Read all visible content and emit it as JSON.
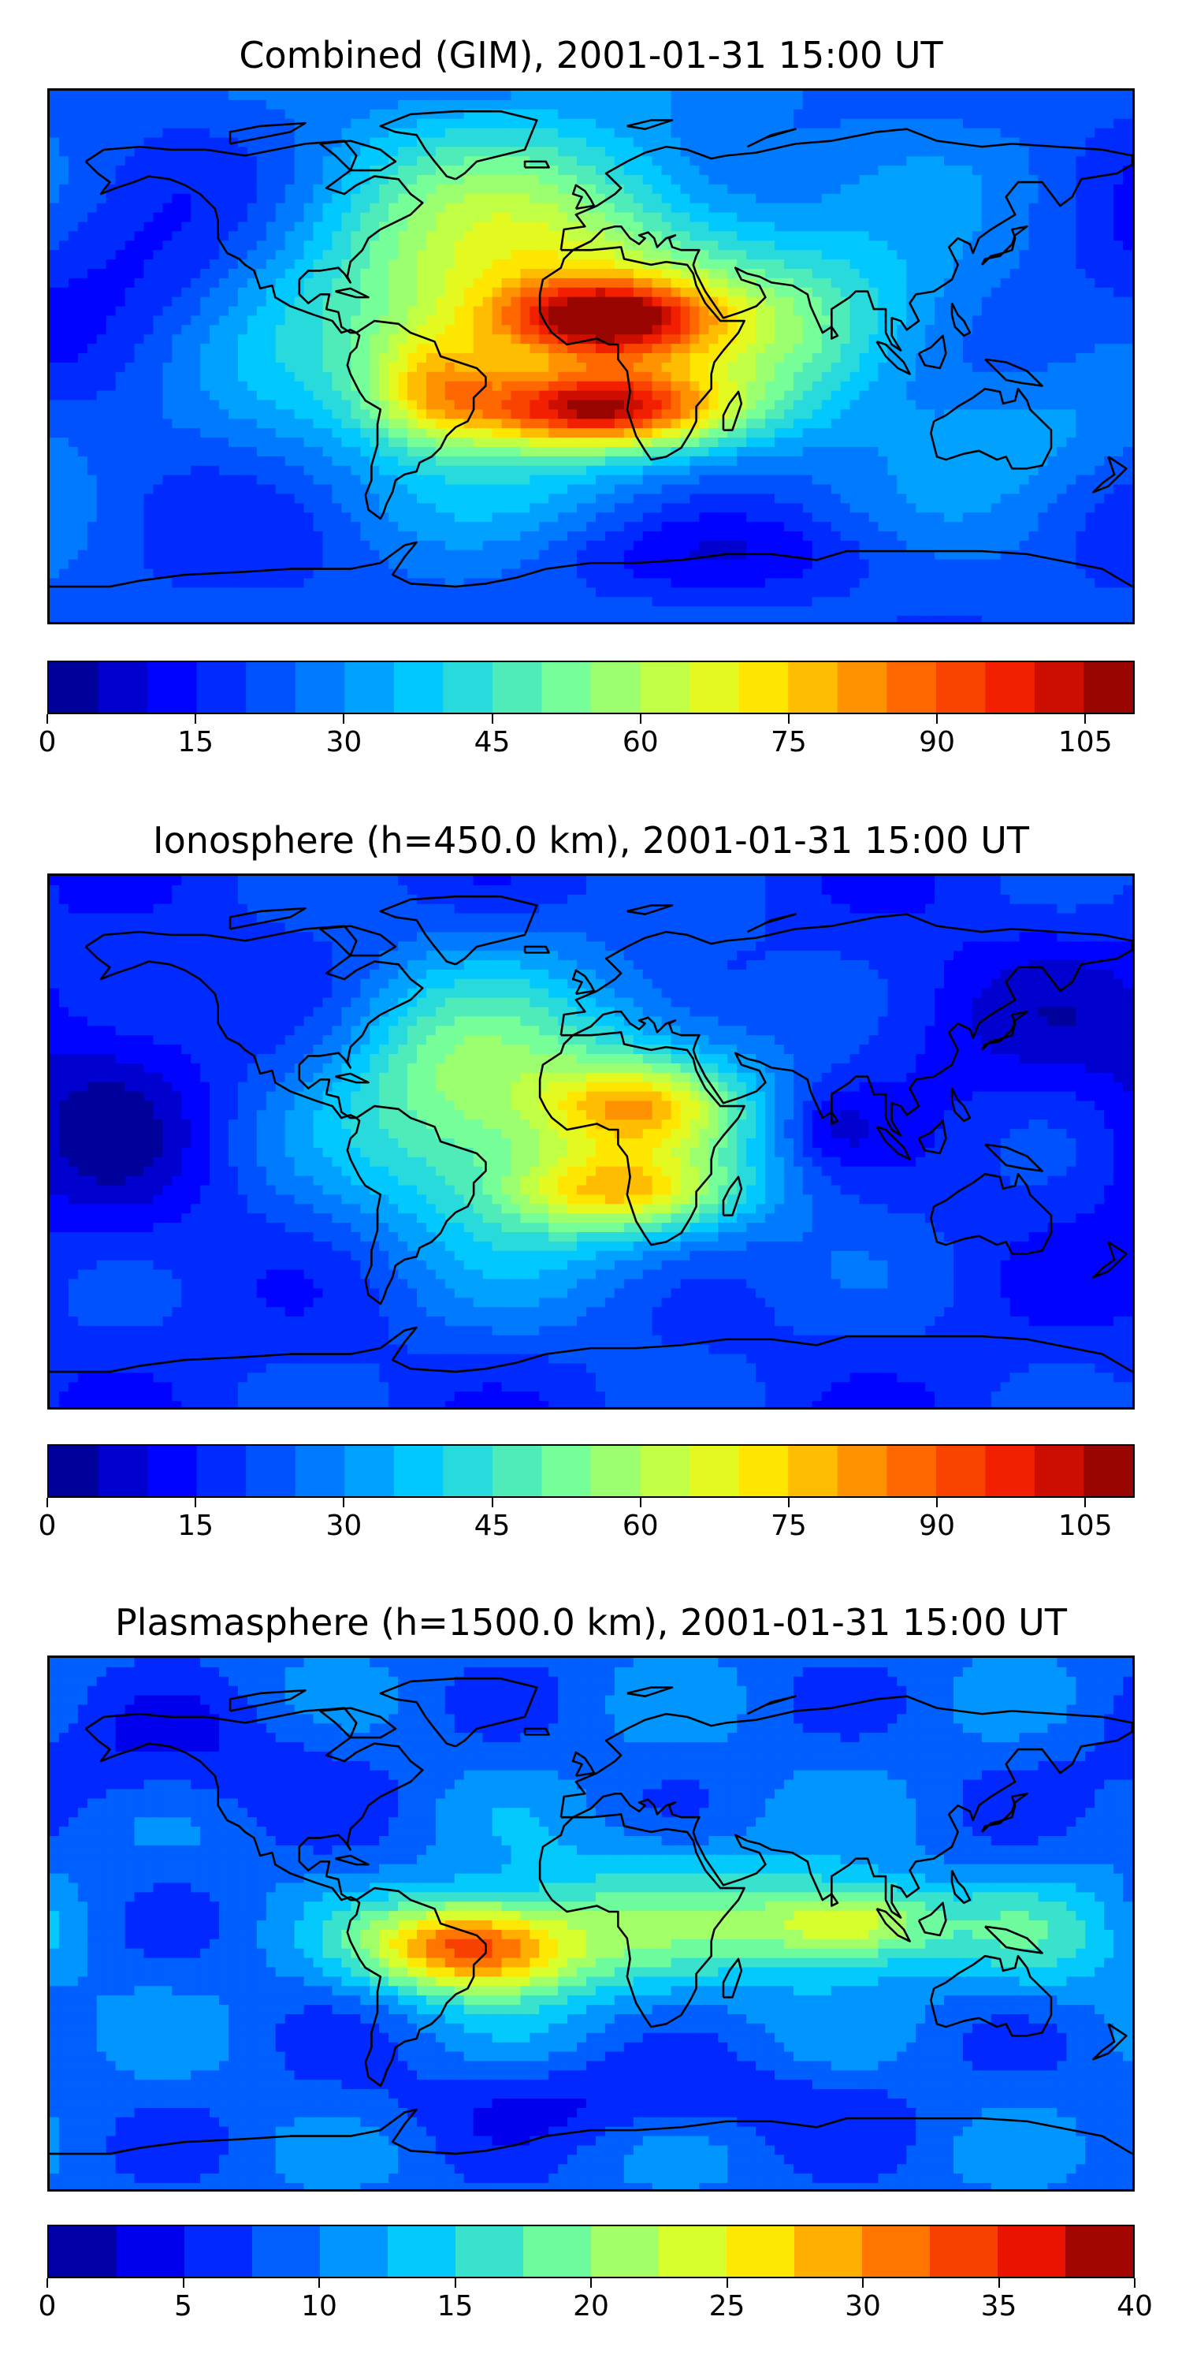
{
  "chart_data": [
    {
      "type": "heatmap",
      "title": "Combined (GIM), 2001-01-31 15:00 UT",
      "colorbar": {
        "min": 0,
        "max": 110,
        "levels": 22,
        "ticks": [
          0,
          15,
          30,
          45,
          60,
          75,
          90,
          105
        ],
        "tick_labels": [
          "0",
          "15",
          "30",
          "45",
          "60",
          "75",
          "90",
          "105"
        ]
      },
      "features": [
        {
          "name": "north-africa-peak",
          "lon": 5,
          "lat": 12,
          "value": 100
        },
        {
          "name": "south-atlantic-peak",
          "lon": 0,
          "lat": -18,
          "value": 103
        },
        {
          "name": "south-america-max",
          "lon": -55,
          "lat": -8,
          "value": 80
        },
        {
          "name": "pacific-low",
          "lon": -150,
          "lat": 20,
          "value": 20
        },
        {
          "name": "southern-ocean-low",
          "lon": 50,
          "lat": -75,
          "value": 18
        }
      ]
    },
    {
      "type": "heatmap",
      "title": "Ionosphere  (h=450.0 km), 2001-01-31 15:00 UT",
      "colorbar": {
        "min": 0,
        "max": 110,
        "levels": 22,
        "ticks": [
          0,
          15,
          30,
          45,
          60,
          75,
          90,
          105
        ],
        "tick_labels": [
          "0",
          "15",
          "30",
          "45",
          "60",
          "75",
          "90",
          "105"
        ]
      },
      "features": [
        {
          "name": "north-africa-peak",
          "lon": 15,
          "lat": 12,
          "value": 78
        },
        {
          "name": "south-atlantic-peak",
          "lon": 10,
          "lat": -17,
          "value": 80
        },
        {
          "name": "pacific-low",
          "lon": -160,
          "lat": 5,
          "value": 8
        },
        {
          "name": "indian-ocean-low",
          "lon": 80,
          "lat": 5,
          "value": 10
        }
      ]
    },
    {
      "type": "heatmap",
      "title": "Plasmasphere (h=1500.0 km), 2001-01-31 15:00 UT",
      "colorbar": {
        "min": 0,
        "max": 40,
        "levels": 16,
        "ticks": [
          0,
          5,
          10,
          15,
          20,
          25,
          30,
          35,
          40
        ],
        "tick_labels": [
          "0",
          "5",
          "10",
          "15",
          "20",
          "25",
          "30",
          "35",
          "40"
        ]
      },
      "features": [
        {
          "name": "brazil-peak",
          "lon": -40,
          "lat": -8,
          "value": 33
        },
        {
          "name": "india-peak",
          "lon": 85,
          "lat": 0,
          "value": 27
        },
        {
          "name": "north-pacific-low",
          "lon": -140,
          "lat": 55,
          "value": 6
        },
        {
          "name": "southern-ocean-low",
          "lon": 10,
          "lat": -60,
          "value": 5
        }
      ]
    }
  ]
}
